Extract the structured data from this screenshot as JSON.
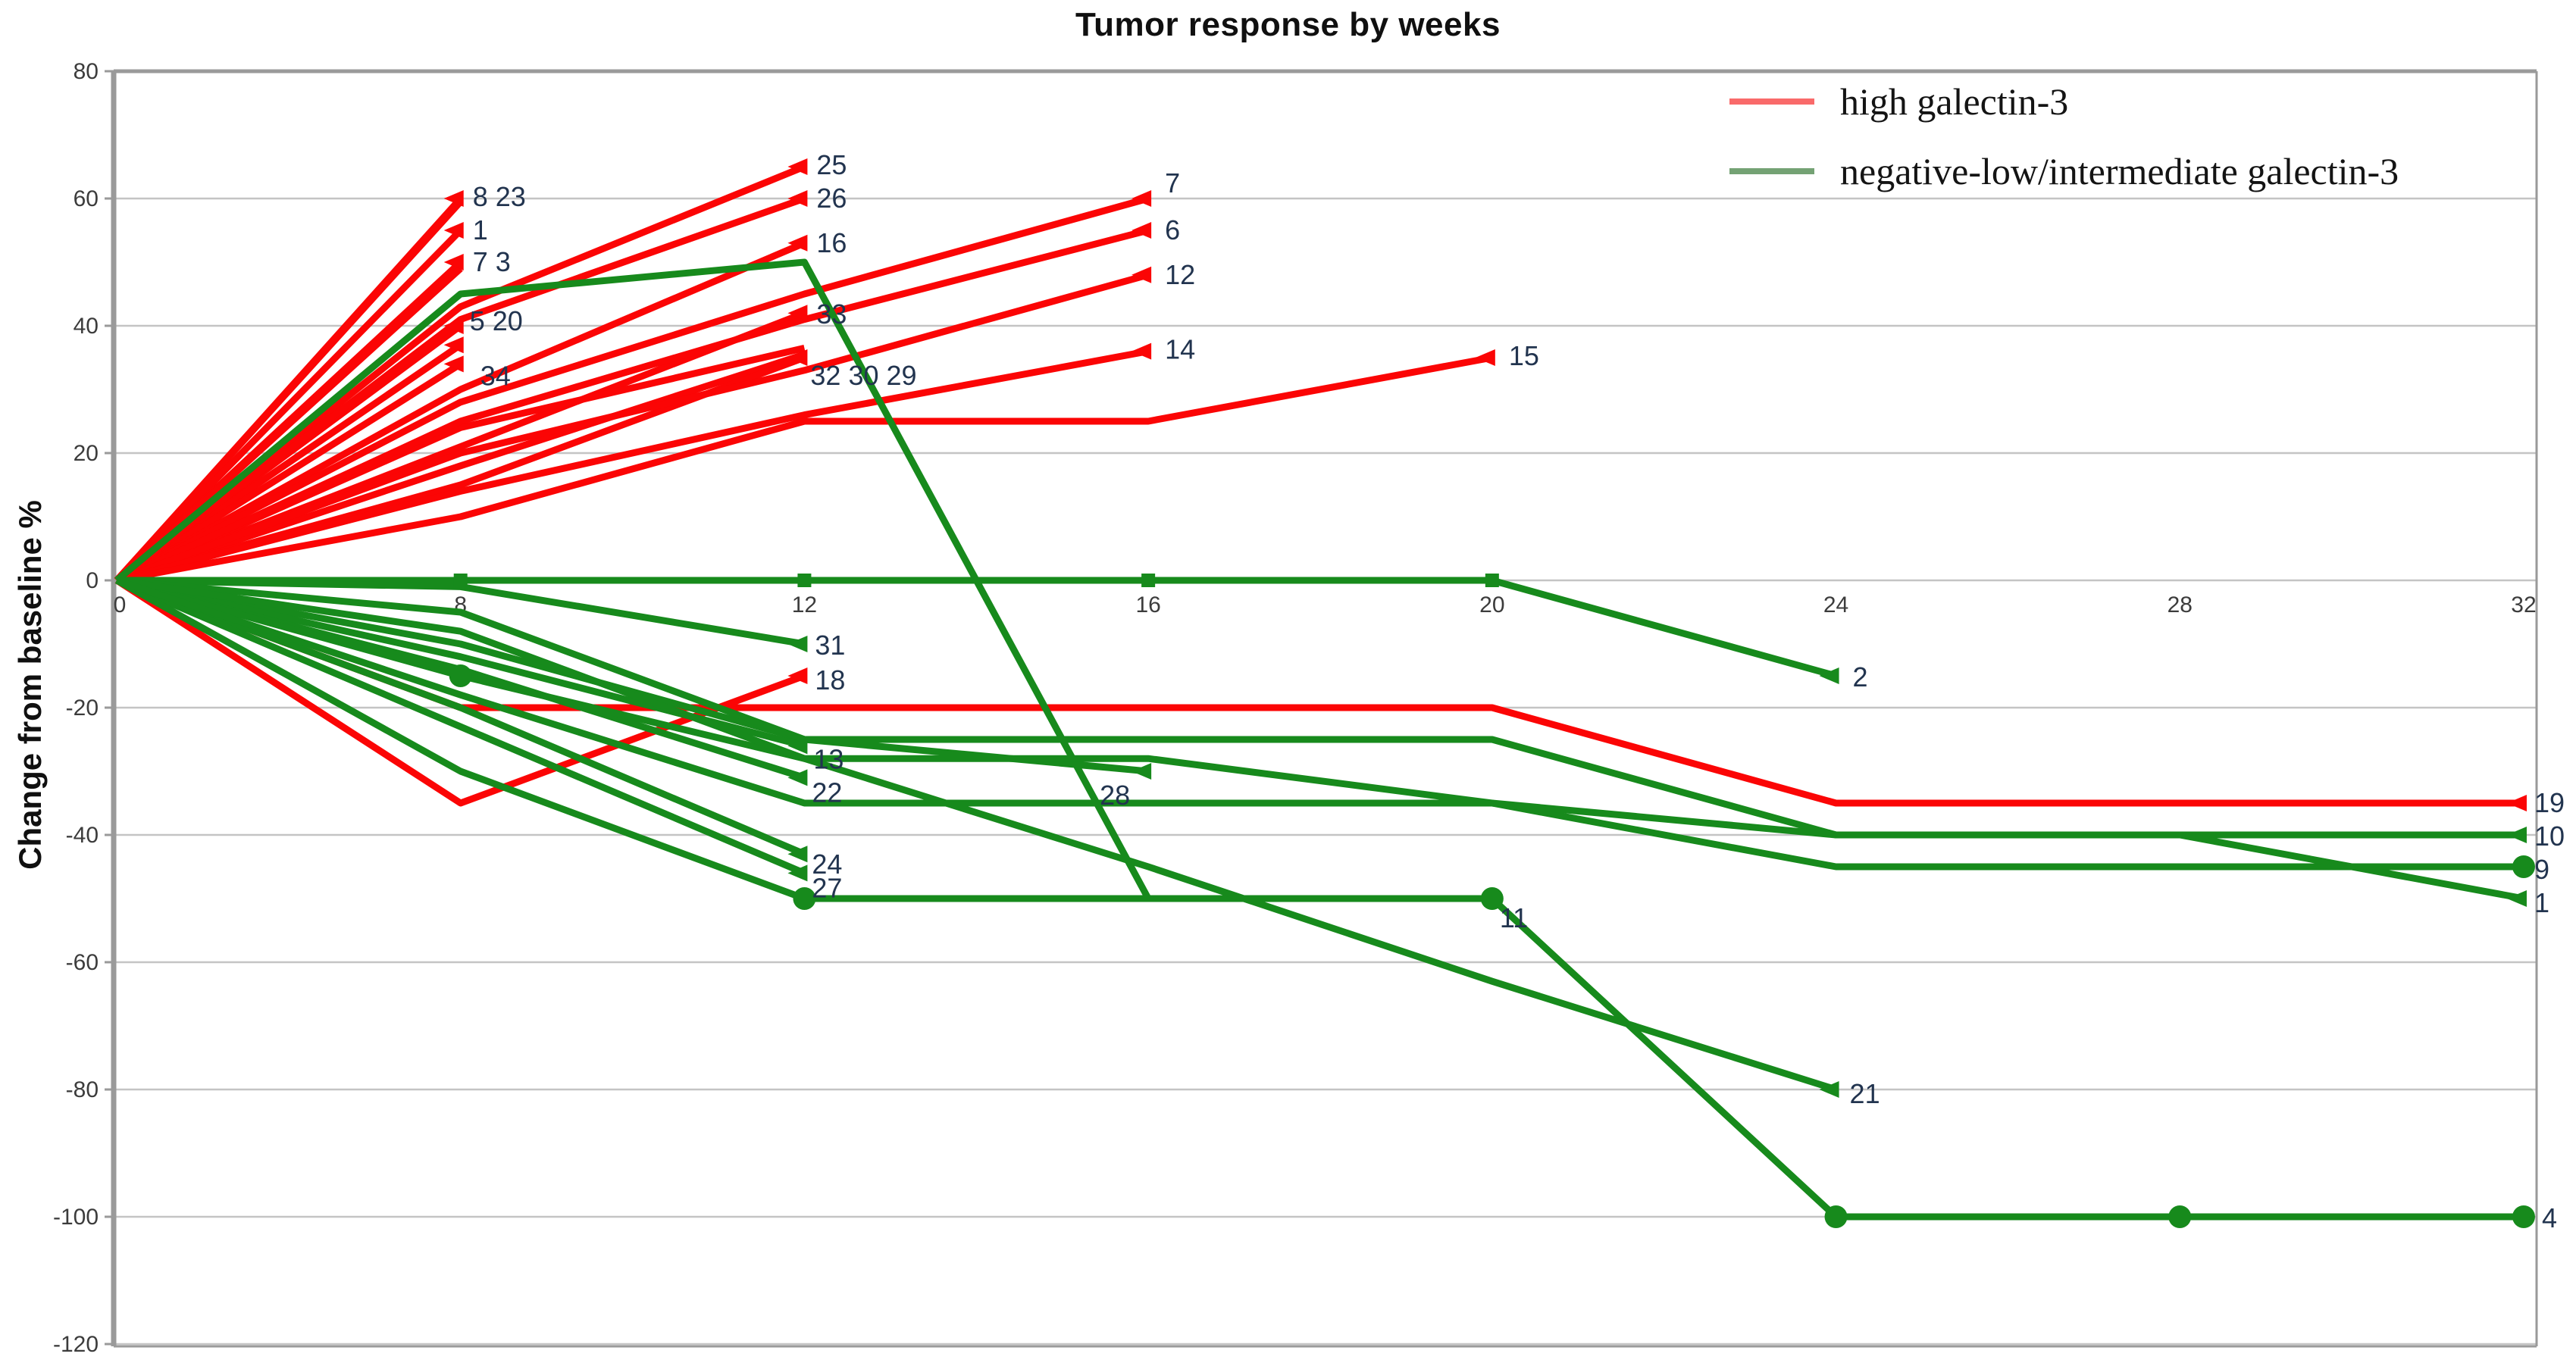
{
  "title": "Tumor response by weeks",
  "y_axis_title": "Change from baseline %",
  "legend": [
    {
      "label": "high galectin-3",
      "color": "#f96a6a"
    },
    {
      "label": "negative-low/intermediate galectin-3",
      "color": "#74a274"
    }
  ],
  "colors": {
    "high": "#fb0505",
    "neg": "#178a1c",
    "grid": "#c4c4c4",
    "frame": "#9a9a9a",
    "tick_text": "#3c3c3c",
    "data_label": "#22344f",
    "title_text": "#101010"
  },
  "chart_data": {
    "type": "line",
    "title": "Tumor response by weeks",
    "xlabel": "",
    "ylabel": "Change from baseline %",
    "x_categories": [
      0,
      8,
      12,
      16,
      20,
      24,
      28,
      32
    ],
    "y_ticks": [
      80,
      60,
      40,
      20,
      0,
      -20,
      -40,
      -60,
      -80,
      -100,
      -120
    ],
    "ylim": [
      -120,
      80
    ],
    "grid": "horizontal",
    "legend_position": "top-right",
    "series": [
      {
        "id": "r8",
        "group": "high",
        "points": [
          [
            0,
            0
          ],
          [
            8,
            60
          ]
        ],
        "label": {
          "text": "8 23",
          "dx": 16,
          "dy": 10
        },
        "markers": [
          {
            "w": 8,
            "v": 60,
            "t": "arrow"
          }
        ]
      },
      {
        "id": "r23",
        "group": "high",
        "points": [
          [
            0,
            0
          ],
          [
            8,
            59.5
          ]
        ]
      },
      {
        "id": "r1",
        "group": "high",
        "points": [
          [
            0,
            0
          ],
          [
            8,
            55
          ]
        ],
        "label": {
          "text": "1",
          "dx": 16,
          "dy": 12
        },
        "markers": [
          {
            "w": 8,
            "v": 55,
            "t": "arrow"
          }
        ]
      },
      {
        "id": "r7a",
        "group": "high",
        "points": [
          [
            0,
            0
          ],
          [
            8,
            50
          ]
        ],
        "label": {
          "text": "7 3",
          "dx": 16,
          "dy": 12
        },
        "markers": [
          {
            "w": 8,
            "v": 50,
            "t": "arrow"
          }
        ]
      },
      {
        "id": "r3",
        "group": "high",
        "points": [
          [
            0,
            0
          ],
          [
            8,
            49
          ]
        ]
      },
      {
        "id": "r20",
        "group": "high",
        "points": [
          [
            0,
            0
          ],
          [
            8,
            40
          ]
        ],
        "label": {
          "text": "5 20",
          "dx": 12,
          "dy": 6
        },
        "markers": [
          {
            "w": 8,
            "v": 40,
            "t": "arrow"
          }
        ]
      },
      {
        "id": "r5",
        "group": "high",
        "points": [
          [
            0,
            0
          ],
          [
            8,
            37
          ]
        ],
        "markers": [
          {
            "w": 8,
            "v": 37,
            "t": "arrow"
          }
        ]
      },
      {
        "id": "r34",
        "group": "high",
        "points": [
          [
            0,
            0
          ],
          [
            8,
            34
          ]
        ],
        "label": {
          "text": "34",
          "dx": 26,
          "dy": 28
        },
        "markers": [
          {
            "w": 8,
            "v": 34,
            "t": "arrow"
          }
        ]
      },
      {
        "id": "r25",
        "group": "high",
        "points": [
          [
            0,
            0
          ],
          [
            8,
            43
          ],
          [
            12,
            65
          ]
        ],
        "label": {
          "text": "25",
          "dx": 16,
          "dy": 10
        },
        "markers": [
          {
            "w": 12,
            "v": 65,
            "t": "arrow"
          }
        ]
      },
      {
        "id": "r26",
        "group": "high",
        "points": [
          [
            0,
            0
          ],
          [
            8,
            41
          ],
          [
            12,
            60
          ]
        ],
        "label": {
          "text": "26",
          "dx": 16,
          "dy": 12
        },
        "markers": [
          {
            "w": 12,
            "v": 60,
            "t": "arrow"
          }
        ]
      },
      {
        "id": "r16",
        "group": "high",
        "points": [
          [
            0,
            0
          ],
          [
            8,
            30
          ],
          [
            12,
            53
          ]
        ],
        "label": {
          "text": "16",
          "dx": 16,
          "dy": 12
        },
        "markers": [
          {
            "w": 12,
            "v": 53,
            "t": "arrow"
          }
        ]
      },
      {
        "id": "r33",
        "group": "high",
        "points": [
          [
            0,
            0
          ],
          [
            8,
            21
          ],
          [
            12,
            42
          ]
        ],
        "label": {
          "text": "33",
          "dx": 16,
          "dy": 14
        },
        "markers": [
          {
            "w": 12,
            "v": 42,
            "t": "arrow"
          }
        ]
      },
      {
        "id": "r29",
        "group": "high",
        "points": [
          [
            0,
            0
          ],
          [
            8,
            24
          ],
          [
            12,
            36.5
          ]
        ]
      },
      {
        "id": "r30",
        "group": "high",
        "points": [
          [
            0,
            0
          ],
          [
            8,
            18
          ],
          [
            12,
            35.5
          ]
        ]
      },
      {
        "id": "r32",
        "group": "high",
        "points": [
          [
            0,
            0
          ],
          [
            8,
            15
          ],
          [
            12,
            35
          ]
        ],
        "label": {
          "text": "32 30 29",
          "dx": 8,
          "dy": 36
        },
        "markers": [
          {
            "w": 12,
            "v": 35,
            "t": "arrow"
          }
        ]
      },
      {
        "id": "r7b",
        "group": "high",
        "points": [
          [
            0,
            0
          ],
          [
            8,
            28
          ],
          [
            12,
            45
          ],
          [
            16,
            60
          ]
        ],
        "label": {
          "text": "7",
          "dx": 22,
          "dy": -8
        },
        "markers": [
          {
            "w": 16,
            "v": 60,
            "t": "arrow"
          }
        ]
      },
      {
        "id": "r6",
        "group": "high",
        "points": [
          [
            0,
            0
          ],
          [
            8,
            25
          ],
          [
            12,
            41
          ],
          [
            16,
            55
          ]
        ],
        "label": {
          "text": "6",
          "dx": 22,
          "dy": 12
        },
        "markers": [
          {
            "w": 16,
            "v": 55,
            "t": "arrow"
          }
        ]
      },
      {
        "id": "r12",
        "group": "high",
        "points": [
          [
            0,
            0
          ],
          [
            8,
            20
          ],
          [
            12,
            33
          ],
          [
            16,
            48
          ]
        ],
        "label": {
          "text": "12",
          "dx": 22,
          "dy": 12
        },
        "markers": [
          {
            "w": 16,
            "v": 48,
            "t": "arrow"
          }
        ]
      },
      {
        "id": "r14",
        "group": "high",
        "points": [
          [
            0,
            0
          ],
          [
            8,
            14
          ],
          [
            12,
            26
          ],
          [
            16,
            36
          ]
        ],
        "label": {
          "text": "14",
          "dx": 22,
          "dy": 10
        },
        "markers": [
          {
            "w": 16,
            "v": 36,
            "t": "arrow"
          }
        ]
      },
      {
        "id": "r15",
        "group": "high",
        "points": [
          [
            0,
            0
          ],
          [
            8,
            10
          ],
          [
            12,
            25
          ],
          [
            16,
            25
          ],
          [
            20,
            35
          ]
        ],
        "label": {
          "text": "15",
          "dx": 22,
          "dy": 10
        },
        "markers": [
          {
            "w": 20,
            "v": 35,
            "t": "arrow"
          }
        ]
      },
      {
        "id": "r18",
        "group": "high",
        "points": [
          [
            0,
            0
          ],
          [
            8,
            -35
          ],
          [
            12,
            -15
          ]
        ],
        "label": {
          "text": "18",
          "dx": 14,
          "dy": 18
        },
        "markers": [
          {
            "w": 12,
            "v": -15,
            "t": "arrow"
          }
        ]
      },
      {
        "id": "r19",
        "group": "high",
        "points": [
          [
            0,
            0
          ],
          [
            8,
            -20
          ],
          [
            12,
            -20
          ],
          [
            16,
            -20
          ],
          [
            20,
            -20
          ],
          [
            24,
            -35
          ],
          [
            28,
            -35
          ],
          [
            32,
            -35
          ]
        ],
        "label": {
          "text": "19",
          "dx": 14,
          "dy": 12
        },
        "markers": [
          {
            "w": 32,
            "v": -35,
            "t": "arrow"
          }
        ]
      },
      {
        "id": "g2",
        "group": "neg",
        "points": [
          [
            0,
            0
          ],
          [
            8,
            0
          ],
          [
            12,
            0
          ],
          [
            16,
            0
          ],
          [
            20,
            0
          ],
          [
            24,
            -15
          ]
        ],
        "label": {
          "text": "2",
          "dx": 22,
          "dy": 14
        },
        "markers": [
          {
            "w": 8,
            "v": 0,
            "t": "square"
          },
          {
            "w": 12,
            "v": 0,
            "t": "square"
          },
          {
            "w": 16,
            "v": 0,
            "t": "square"
          },
          {
            "w": 20,
            "v": 0,
            "t": "square"
          },
          {
            "w": 24,
            "v": -15,
            "t": "arrow"
          }
        ]
      },
      {
        "id": "g31",
        "group": "neg",
        "points": [
          [
            0,
            0
          ],
          [
            8,
            -1
          ],
          [
            12,
            -10
          ]
        ],
        "label": {
          "text": "31",
          "dx": 14,
          "dy": 14
        },
        "markers": [
          {
            "w": 12,
            "v": -10,
            "t": "arrow"
          }
        ]
      },
      {
        "id": "g4",
        "group": "neg",
        "points": [
          [
            0,
            0
          ],
          [
            8,
            45
          ],
          [
            12,
            50
          ],
          [
            16,
            -50
          ],
          [
            20,
            -50
          ],
          [
            24,
            -100
          ],
          [
            28,
            -100
          ],
          [
            32,
            -100
          ]
        ],
        "label": {
          "text": "4",
          "dx": 24,
          "dy": 14
        },
        "markers": [
          {
            "w": 20,
            "v": -50,
            "t": "dot"
          },
          {
            "w": 24,
            "v": -100,
            "t": "dot"
          },
          {
            "w": 28,
            "v": -100,
            "t": "dot"
          },
          {
            "w": 32,
            "v": -100,
            "t": "dot"
          }
        ]
      },
      {
        "id": "g28",
        "group": "neg",
        "points": [
          [
            0,
            0
          ],
          [
            8,
            -10
          ],
          [
            12,
            -25
          ],
          [
            16,
            -30
          ]
        ],
        "label": {
          "text": "28",
          "dx": -64,
          "dy": 44
        },
        "markers": [
          {
            "w": 16,
            "v": -30,
            "t": "arrow"
          }
        ]
      },
      {
        "id": "g13",
        "group": "neg",
        "points": [
          [
            0,
            0
          ],
          [
            8,
            -12
          ],
          [
            12,
            -26
          ]
        ],
        "label": {
          "text": "13",
          "dx": 12,
          "dy": 30
        },
        "markers": [
          {
            "w": 12,
            "v": -26,
            "t": "arrow"
          }
        ]
      },
      {
        "id": "g22",
        "group": "neg",
        "points": [
          [
            0,
            0
          ],
          [
            8,
            -14
          ],
          [
            12,
            -31
          ]
        ],
        "label": {
          "text": "22",
          "dx": 10,
          "dy": 32
        },
        "markers": [
          {
            "w": 12,
            "v": -31,
            "t": "arrow"
          }
        ]
      },
      {
        "id": "g24",
        "group": "neg",
        "points": [
          [
            0,
            0
          ],
          [
            8,
            -20
          ],
          [
            12,
            -43
          ]
        ],
        "label": {
          "text": "24",
          "dx": 10,
          "dy": 26
        },
        "markers": [
          {
            "w": 12,
            "v": -43,
            "t": "arrow"
          }
        ]
      },
      {
        "id": "g27",
        "group": "neg",
        "points": [
          [
            0,
            0
          ],
          [
            8,
            -23
          ],
          [
            12,
            -46
          ]
        ],
        "label": {
          "text": "27",
          "dx": 10,
          "dy": 32
        },
        "markers": [
          {
            "w": 12,
            "v": -46,
            "t": "arrow"
          }
        ]
      },
      {
        "id": "g11",
        "group": "neg",
        "points": [
          [
            0,
            0
          ],
          [
            8,
            -30
          ],
          [
            12,
            -50
          ],
          [
            16,
            -50
          ],
          [
            20,
            -50
          ]
        ],
        "label": {
          "text": "11",
          "dx": 10,
          "dy": 38
        },
        "markers": [
          {
            "w": 12,
            "v": -50,
            "t": "dot"
          }
        ]
      },
      {
        "id": "g21",
        "group": "neg",
        "points": [
          [
            0,
            0
          ],
          [
            8,
            -15
          ],
          [
            12,
            -28
          ],
          [
            16,
            -45
          ],
          [
            20,
            -63
          ],
          [
            24,
            -80
          ]
        ],
        "label": {
          "text": "21",
          "dx": 18,
          "dy": 18
        },
        "markers": [
          {
            "w": 8,
            "v": -15,
            "t": "dot"
          },
          {
            "w": 24,
            "v": -80,
            "t": "arrow"
          }
        ]
      },
      {
        "id": "g10",
        "group": "neg",
        "points": [
          [
            0,
            0
          ],
          [
            8,
            -5
          ],
          [
            12,
            -25
          ],
          [
            16,
            -25
          ],
          [
            20,
            -25
          ],
          [
            24,
            -40
          ],
          [
            28,
            -40
          ],
          [
            32,
            -40
          ]
        ],
        "label": {
          "text": "10",
          "dx": 14,
          "dy": 14
        },
        "markers": [
          {
            "w": 32,
            "v": -40,
            "t": "arrow"
          }
        ]
      },
      {
        "id": "g9",
        "group": "neg",
        "points": [
          [
            0,
            0
          ],
          [
            8,
            -8
          ],
          [
            12,
            -28
          ],
          [
            16,
            -28
          ],
          [
            20,
            -35
          ],
          [
            24,
            -45
          ],
          [
            28,
            -45
          ],
          [
            32,
            -45
          ]
        ],
        "label": {
          "text": "9",
          "dx": 14,
          "dy": 16
        },
        "markers": [
          {
            "w": 32,
            "v": -45,
            "t": "dot"
          }
        ]
      },
      {
        "id": "g1",
        "group": "neg",
        "points": [
          [
            0,
            0
          ],
          [
            8,
            -18
          ],
          [
            12,
            -35
          ],
          [
            16,
            -35
          ],
          [
            20,
            -35
          ],
          [
            24,
            -40
          ],
          [
            28,
            -40
          ],
          [
            32,
            -50
          ]
        ],
        "label": {
          "text": "1",
          "dx": 14,
          "dy": 18
        },
        "markers": [
          {
            "w": 32,
            "v": -50,
            "t": "arrow"
          }
        ]
      }
    ]
  }
}
